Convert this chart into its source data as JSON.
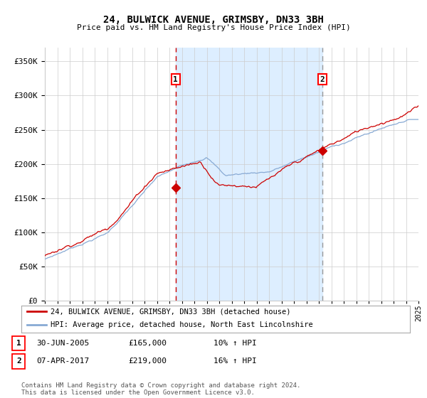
{
  "title": "24, BULWICK AVENUE, GRIMSBY, DN33 3BH",
  "subtitle": "Price paid vs. HM Land Registry's House Price Index (HPI)",
  "ylim": [
    0,
    370000
  ],
  "yticks": [
    0,
    50000,
    100000,
    150000,
    200000,
    250000,
    300000,
    350000
  ],
  "xstart_year": 1995,
  "xend_year": 2025,
  "sale1_date": 2005.5,
  "sale1_price": 165000,
  "sale1_label": "1",
  "sale2_date": 2017.27,
  "sale2_price": 219000,
  "sale2_label": "2",
  "shade_color": "#ddeeff",
  "line1_color": "#cc0000",
  "line2_color": "#88aad4",
  "bg_color": "#ffffff",
  "grid_color": "#cccccc",
  "footnote": "Contains HM Land Registry data © Crown copyright and database right 2024.\nThis data is licensed under the Open Government Licence v3.0.",
  "legend1": "24, BULWICK AVENUE, GRIMSBY, DN33 3BH (detached house)",
  "legend2": "HPI: Average price, detached house, North East Lincolnshire",
  "table_row1": [
    "1",
    "30-JUN-2005",
    "£165,000",
    "10% ↑ HPI"
  ],
  "table_row2": [
    "2",
    "07-APR-2017",
    "£219,000",
    "16% ↑ HPI"
  ]
}
